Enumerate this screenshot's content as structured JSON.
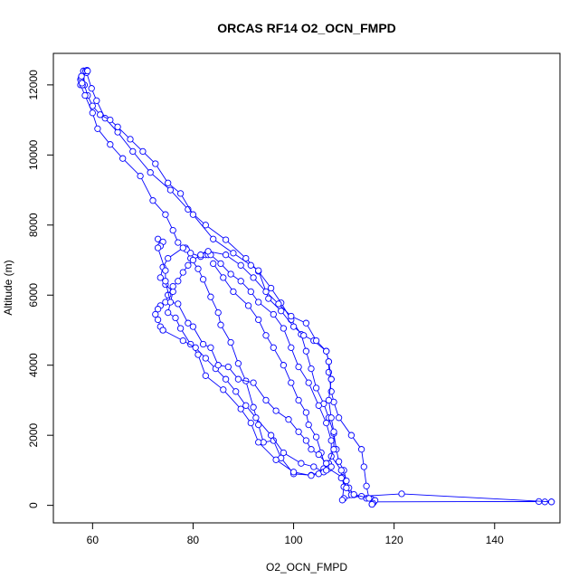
{
  "chart_data": {
    "type": "scatter",
    "title": "ORCAS RF14 O2_OCN_FMPD",
    "xlabel": "O2_OCN_FMPD",
    "ylabel": "Altitude (m)",
    "xlim": [
      52.2,
      153.0
    ],
    "ylim": [
      -500,
      12900
    ],
    "xticks": [
      60,
      80,
      100,
      120,
      140
    ],
    "yticks": [
      0,
      2000,
      4000,
      6000,
      8000,
      10000,
      12000
    ],
    "grid": false,
    "color": "#0000ff",
    "series": [
      {
        "points": [
          [
            58.8,
            12350
          ],
          [
            59.8,
            11900
          ],
          [
            60.8,
            11550
          ],
          [
            62.5,
            11050
          ],
          [
            65.0,
            10650
          ],
          [
            68.0,
            10100
          ],
          [
            71.5,
            9500
          ],
          [
            75.5,
            9000
          ],
          [
            79.0,
            8450
          ],
          [
            82.5,
            8000
          ],
          [
            86.5,
            7580
          ],
          [
            90.5,
            7050
          ],
          [
            93.0,
            6680
          ],
          [
            95.5,
            6200
          ],
          [
            97.5,
            5780
          ],
          [
            99.5,
            5300
          ],
          [
            101.5,
            4880
          ],
          [
            102.5,
            4400
          ],
          [
            103.5,
            3900
          ],
          [
            104.5,
            3350
          ],
          [
            106.0,
            2900
          ],
          [
            107.0,
            2500
          ],
          [
            108.0,
            2050
          ],
          [
            108.5,
            1600
          ],
          [
            109.0,
            1250
          ],
          [
            110.0,
            1000
          ],
          [
            110.5,
            700
          ],
          [
            111.0,
            500
          ],
          [
            112.0,
            300
          ],
          [
            114.5,
            200
          ],
          [
            116.0,
            100
          ],
          [
            148.8,
            110
          ],
          [
            150.0,
            100
          ],
          [
            151.3,
            100
          ]
        ]
      },
      {
        "points": [
          [
            151.3,
            100
          ],
          [
            121.5,
            330
          ],
          [
            113.5,
            260
          ],
          [
            110.0,
            200
          ],
          [
            109.7,
            150
          ],
          [
            110.0,
            530
          ],
          [
            109.7,
            800
          ],
          [
            107.0,
            1050
          ],
          [
            106.0,
            1000
          ],
          [
            103.5,
            860
          ],
          [
            100.0,
            900
          ],
          [
            97.5,
            1350
          ],
          [
            96.0,
            1850
          ],
          [
            94.0,
            1800
          ],
          [
            93.0,
            2300
          ],
          [
            92.0,
            2800
          ],
          [
            90.5,
            3550
          ],
          [
            89.0,
            4050
          ],
          [
            87.5,
            4650
          ],
          [
            85.5,
            5150
          ],
          [
            85.0,
            5500
          ],
          [
            83.5,
            5950
          ],
          [
            82.0,
            6450
          ],
          [
            81.0,
            6750
          ],
          [
            79.5,
            7050
          ],
          [
            78.5,
            7350
          ],
          [
            78.7,
            7300
          ],
          [
            79.5,
            7200
          ],
          [
            81.5,
            7100
          ]
        ]
      },
      {
        "points": [
          [
            81.5,
            7100
          ],
          [
            82.5,
            7150
          ],
          [
            83.0,
            7150
          ],
          [
            83.5,
            7150
          ],
          [
            85.5,
            6900
          ],
          [
            87.5,
            6600
          ],
          [
            89.5,
            6400
          ],
          [
            91.5,
            6100
          ],
          [
            93.0,
            5800
          ],
          [
            96.0,
            5450
          ],
          [
            98.0,
            5050
          ],
          [
            99.5,
            4500
          ],
          [
            101.0,
            3950
          ],
          [
            103.0,
            3500
          ],
          [
            105.0,
            2850
          ],
          [
            106.5,
            2350
          ],
          [
            107.5,
            1850
          ],
          [
            107.5,
            1400
          ],
          [
            109.5,
            1000
          ],
          [
            109.5,
            780
          ],
          [
            110.5,
            500
          ],
          [
            111.5,
            300
          ],
          [
            112.0,
            310
          ],
          [
            115.5,
            180
          ],
          [
            116.2,
            140
          ],
          [
            115.8,
            60
          ],
          [
            115.6,
            30
          ]
        ]
      },
      {
        "points": [
          [
            115.6,
            30
          ],
          [
            115.0,
            200
          ],
          [
            114.5,
            550
          ],
          [
            114.0,
            1100
          ],
          [
            113.5,
            1600
          ],
          [
            111.5,
            2000
          ],
          [
            109.0,
            2500
          ],
          [
            108.0,
            2950
          ],
          [
            107.5,
            3250
          ],
          [
            107.0,
            3800
          ],
          [
            107.0,
            4100
          ],
          [
            106.5,
            4400
          ],
          [
            104.0,
            4700
          ],
          [
            102.0,
            4850
          ],
          [
            100.0,
            5100
          ],
          [
            97.5,
            5550
          ],
          [
            95.0,
            5900
          ],
          [
            93.0,
            6700
          ],
          [
            91.5,
            6850
          ],
          [
            88.0,
            7200
          ],
          [
            84.0,
            7600
          ],
          [
            80.0,
            8300
          ],
          [
            77.5,
            8900
          ],
          [
            75.0,
            9200
          ],
          [
            72.5,
            9750
          ],
          [
            70.0,
            10100
          ],
          [
            67.5,
            10450
          ],
          [
            65.0,
            10800
          ],
          [
            63.5,
            11000
          ],
          [
            61.5,
            11150
          ],
          [
            60.0,
            11400
          ],
          [
            59.0,
            11700
          ],
          [
            58.4,
            12000
          ],
          [
            58.2,
            12400
          ]
        ]
      },
      {
        "points": [
          [
            58.2,
            12400
          ],
          [
            57.8,
            12100
          ],
          [
            57.6,
            12000
          ],
          [
            58.5,
            11700
          ],
          [
            60.0,
            11200
          ],
          [
            61.0,
            10750
          ],
          [
            63.5,
            10300
          ],
          [
            66.0,
            9900
          ],
          [
            69.5,
            9400
          ],
          [
            72.0,
            8700
          ],
          [
            74.5,
            8300
          ],
          [
            76.0,
            7850
          ],
          [
            77.0,
            7500
          ],
          [
            78.0,
            7350
          ],
          [
            75.0,
            7050
          ],
          [
            74.0,
            6800
          ],
          [
            73.5,
            6500
          ],
          [
            74.5,
            6300
          ],
          [
            76.0,
            6100
          ],
          [
            75.0,
            5500
          ],
          [
            76.5,
            5350
          ],
          [
            77.5,
            5050
          ],
          [
            79.5,
            4600
          ],
          [
            81.0,
            4300
          ],
          [
            82.5,
            3700
          ],
          [
            86.0,
            3300
          ],
          [
            89.5,
            2750
          ],
          [
            91.5,
            2350
          ],
          [
            93.0,
            1800
          ],
          [
            96.5,
            1300
          ],
          [
            100.0,
            950
          ],
          [
            103.5,
            850
          ],
          [
            105.0,
            900
          ],
          [
            106.0,
            1050
          ],
          [
            107.0,
            1200
          ],
          [
            108.0,
            1600
          ],
          [
            108.0,
            2100
          ],
          [
            107.5,
            2500
          ],
          [
            107.0,
            3000
          ],
          [
            107.5,
            3600
          ]
        ]
      },
      {
        "points": [
          [
            107.5,
            3600
          ],
          [
            107.0,
            4100
          ],
          [
            106.5,
            4400
          ],
          [
            104.5,
            4700
          ],
          [
            102.5,
            5200
          ],
          [
            99.5,
            5400
          ],
          [
            97.0,
            5750
          ],
          [
            94.5,
            6100
          ],
          [
            92.0,
            6500
          ],
          [
            89.5,
            6850
          ],
          [
            86.5,
            7150
          ],
          [
            83.0,
            7250
          ],
          [
            81.5,
            7150
          ],
          [
            80.0,
            7000
          ],
          [
            79.0,
            6850
          ],
          [
            78.0,
            6650
          ],
          [
            77.0,
            6400
          ],
          [
            76.0,
            6250
          ],
          [
            75.0,
            6000
          ],
          [
            74.5,
            5800
          ],
          [
            73.5,
            5700
          ],
          [
            73.0,
            5600
          ],
          [
            72.5,
            5450
          ],
          [
            73.0,
            5300
          ],
          [
            73.5,
            5100
          ],
          [
            74.0,
            5000
          ]
        ]
      },
      {
        "points": [
          [
            74.0,
            5000
          ],
          [
            78.0,
            4700
          ],
          [
            80.5,
            4500
          ],
          [
            82.5,
            4200
          ],
          [
            84.5,
            3900
          ],
          [
            86.5,
            3600
          ],
          [
            88.5,
            3250
          ],
          [
            90.5,
            2850
          ],
          [
            92.5,
            2500
          ],
          [
            95.5,
            2000
          ],
          [
            98.0,
            1500
          ],
          [
            101.5,
            1200
          ],
          [
            104.0,
            1100
          ],
          [
            106.0,
            950
          ],
          [
            106.5,
            1000
          ],
          [
            105.5,
            1500
          ],
          [
            104.5,
            1950
          ],
          [
            103.0,
            2300
          ],
          [
            102.5,
            2650
          ],
          [
            101.0,
            3000
          ],
          [
            99.5,
            3500
          ],
          [
            98.0,
            4000
          ],
          [
            96.0,
            4500
          ],
          [
            94.5,
            4850
          ],
          [
            93.0,
            5300
          ],
          [
            91.0,
            5700
          ],
          [
            88.0,
            6100
          ],
          [
            86.0,
            6500
          ],
          [
            84.0,
            6900
          ]
        ]
      },
      {
        "points": [
          [
            73.0,
            7600
          ],
          [
            73.8,
            7500
          ],
          [
            74.0,
            7520
          ],
          [
            73.5,
            7400
          ],
          [
            73.0,
            7350
          ],
          [
            74.5,
            6700
          ],
          [
            74.5,
            6400
          ],
          [
            75.5,
            5800
          ],
          [
            77.0,
            5750
          ],
          [
            79.0,
            5200
          ],
          [
            80.0,
            5100
          ],
          [
            82.0,
            4600
          ],
          [
            83.5,
            4500
          ],
          [
            85.0,
            4000
          ],
          [
            87.0,
            3950
          ],
          [
            89.0,
            3600
          ],
          [
            92.0,
            3500
          ],
          [
            94.5,
            3000
          ],
          [
            96.5,
            2700
          ],
          [
            99.0,
            2450
          ],
          [
            101.0,
            2100
          ],
          [
            102.5,
            1850
          ],
          [
            103.5,
            1600
          ],
          [
            105.0,
            1450
          ],
          [
            106.5,
            1200
          ],
          [
            107.5,
            1100
          ]
        ]
      },
      {
        "points": [
          [
            57.6,
            12150
          ],
          [
            57.7,
            12200
          ],
          [
            57.8,
            12250
          ],
          [
            58.0,
            12000
          ],
          [
            57.9,
            12050
          ],
          [
            58.6,
            12400
          ],
          [
            58.9,
            12420
          ],
          [
            59.0,
            12400
          ]
        ]
      }
    ]
  }
}
